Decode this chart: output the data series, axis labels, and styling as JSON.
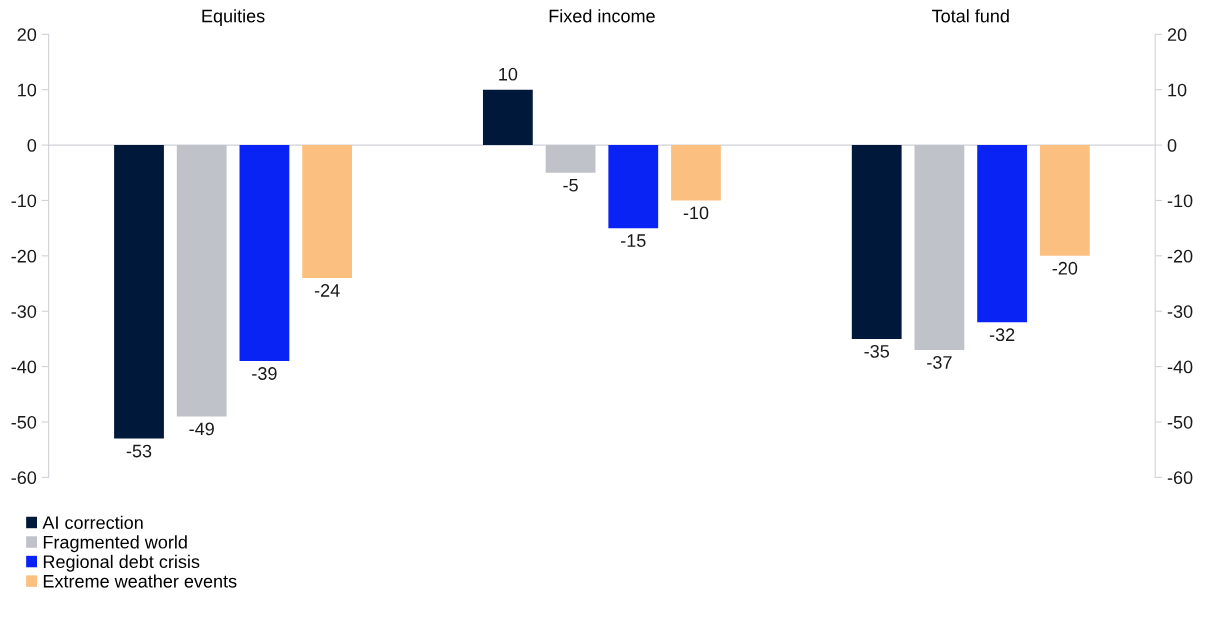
{
  "chart_data": {
    "type": "bar",
    "categories": [
      "Equities",
      "Fixed income",
      "Total fund"
    ],
    "series": [
      {
        "name": "AI correction",
        "color": "#00193a",
        "values": [
          -53,
          10,
          -35
        ]
      },
      {
        "name": "Fragmented world",
        "color": "#c0c2c9",
        "values": [
          -49,
          -5,
          -37
        ]
      },
      {
        "name": "Regional debt crisis",
        "color": "#0a23f5",
        "values": [
          -39,
          -15,
          -32
        ]
      },
      {
        "name": "Extreme weather events",
        "color": "#fbbf80",
        "values": [
          -24,
          -10,
          -20
        ]
      }
    ],
    "ylim": [
      -60,
      20
    ],
    "yticks": [
      -60,
      -50,
      -40,
      -30,
      -20,
      -10,
      0,
      10,
      20
    ],
    "y2lim": [
      -60,
      20
    ],
    "y2ticks": [
      -60,
      -50,
      -40,
      -30,
      -20,
      -10,
      0,
      10,
      20
    ],
    "ref_lines": [
      {
        "axis": "y",
        "value": 0,
        "color": "#d0d2d8"
      }
    ],
    "data_labels": true,
    "legend": "bottom left"
  }
}
